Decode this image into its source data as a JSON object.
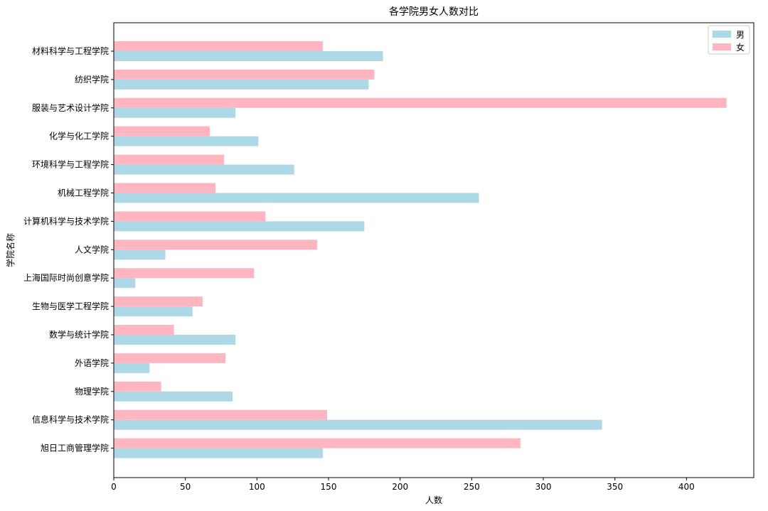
{
  "chart_data": {
    "type": "bar",
    "orientation": "horizontal",
    "title": "各学院男女人数对比",
    "xlabel": "人数",
    "ylabel": "学院名称",
    "xlim": [
      0,
      447
    ],
    "xticks": [
      0,
      50,
      100,
      150,
      200,
      250,
      300,
      350,
      400
    ],
    "grid": false,
    "legend_position": "top-right",
    "categories": [
      "材料科学与工程学院",
      "纺织学院",
      "服装与艺术设计学院",
      "化学与化工学院",
      "环境科学与工程学院",
      "机械工程学院",
      "计算机科学与技术学院",
      "人文学院",
      "上海国际时尚创意学院",
      "生物与医学工程学院",
      "数学与统计学院",
      "外语学院",
      "物理学院",
      "信息科学与技术学院",
      "旭日工商管理学院"
    ],
    "series": [
      {
        "name": "男",
        "color": "#add8e6",
        "values": [
          188,
          178,
          85,
          101,
          126,
          255,
          175,
          36,
          15,
          55,
          85,
          25,
          83,
          341,
          146
        ]
      },
      {
        "name": "女",
        "color": "#ffb6c1",
        "values": [
          146,
          182,
          428,
          67,
          77,
          71,
          106,
          142,
          98,
          62,
          42,
          78,
          33,
          149,
          284
        ]
      }
    ]
  }
}
